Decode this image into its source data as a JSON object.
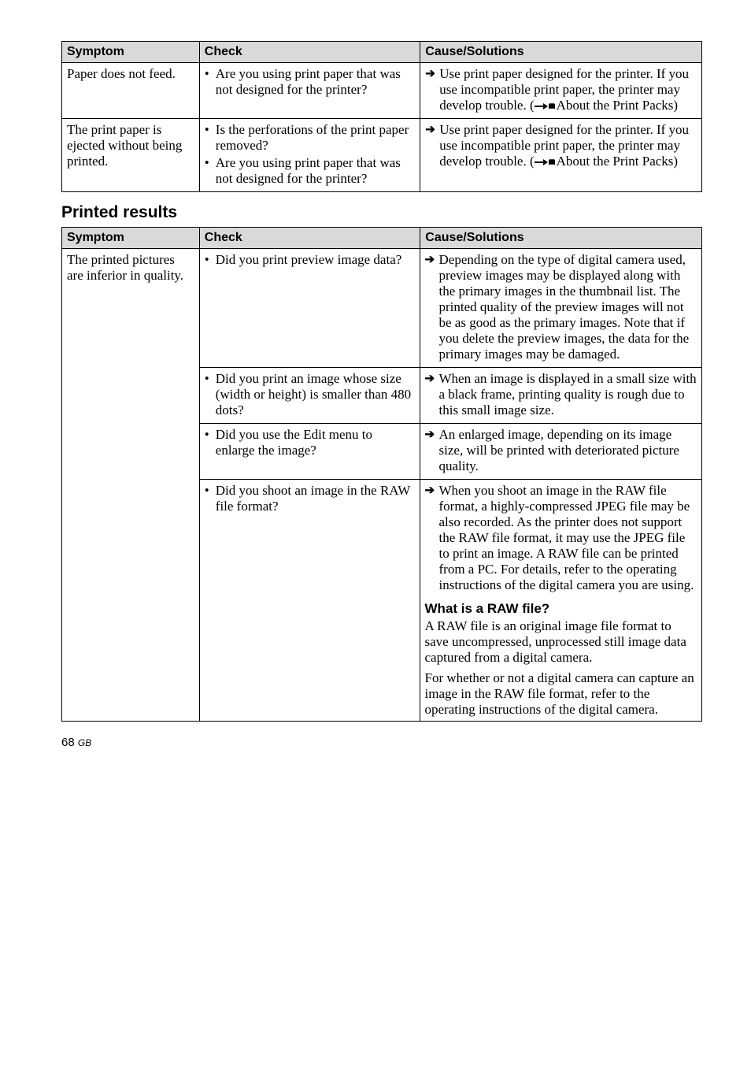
{
  "table1": {
    "headers": {
      "symptom": "Symptom",
      "check": "Check",
      "cause": "Cause/Solutions"
    },
    "rows": [
      {
        "symptom": "Paper does not feed.",
        "checks": [
          "Are you using print paper that was not designed for the printer?"
        ],
        "causes": [
          {
            "text_before": "Use print paper designed for the printer. If you use incompatible print paper, the printer may develop trouble. (",
            "icon": true,
            "text_after": "About the Print Packs)"
          }
        ]
      },
      {
        "symptom": "The print paper is ejected without being printed.",
        "checks": [
          "Is the perforations of the print paper removed?",
          "Are you using print paper that was not designed for the printer?"
        ],
        "causes": [
          {
            "text_before": "Use print paper designed for the printer. If you use incompatible print paper, the printer may develop trouble. (",
            "icon": true,
            "text_after": "About the Print Packs)"
          }
        ]
      }
    ]
  },
  "section_heading": "Printed results",
  "table2": {
    "headers": {
      "symptom": "Symptom",
      "check": "Check",
      "cause": "Cause/Solutions"
    },
    "symptom": "The printed pictures are inferior in quality.",
    "rows": [
      {
        "check": "Did you print preview image data?",
        "cause_arrow": "Depending on the type of digital camera used, preview images may be displayed along with the primary images in the thumbnail list. The printed quality of the preview images will not be as good as the primary images. Note that if you delete the preview images, the data for the primary images may be damaged."
      },
      {
        "check": "Did you print an image whose size (width or height) is smaller than 480 dots?",
        "cause_arrow": "When an image is displayed in a small size with a black frame, printing quality is rough due to this small image size."
      },
      {
        "check": "Did you use the Edit menu to enlarge the image?",
        "cause_arrow": "An enlarged image, depending on its image size, will be printed with deteriorated picture quality."
      },
      {
        "check": "Did you shoot an image in the RAW file format?",
        "cause_arrow": "When you shoot an image in the RAW file format, a highly-compressed JPEG file may be also recorded. As the printer does not support the RAW file format, it may use the JPEG file to print an image. A RAW file can be printed from a PC. For details, refer to the operating instructions of the digital camera you are using.",
        "sub_heading": "What is a RAW file?",
        "sub_para1": "A RAW file is an original image file format to save uncompressed, unprocessed still image data captured from a digital camera.",
        "sub_para2": "For whether or not a digital camera can capture an image in the RAW file format, refer to the operating instructions of the digital camera."
      }
    ]
  },
  "footer": {
    "page": "68",
    "region": "GB"
  }
}
